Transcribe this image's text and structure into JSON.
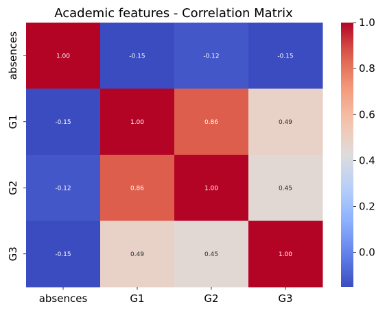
{
  "chart_data": {
    "type": "heatmap",
    "title": "Academic features - Correlation Matrix",
    "x_labels": [
      "absences",
      "G1",
      "G2",
      "G3"
    ],
    "y_labels": [
      "absences",
      "G1",
      "G2",
      "G3"
    ],
    "matrix": [
      [
        1.0,
        -0.15,
        -0.12,
        -0.15
      ],
      [
        -0.15,
        1.0,
        0.86,
        0.49
      ],
      [
        -0.12,
        0.86,
        1.0,
        0.45
      ],
      [
        -0.15,
        0.49,
        0.45,
        1.0
      ]
    ],
    "annotations": [
      [
        "1.00",
        "-0.15",
        "-0.12",
        "-0.15"
      ],
      [
        "-0.15",
        "1.00",
        "0.86",
        "0.49"
      ],
      [
        "-0.12",
        "0.86",
        "1.00",
        "0.45"
      ],
      [
        "-0.15",
        "0.49",
        "0.45",
        "1.00"
      ]
    ],
    "colormap": "coolwarm",
    "vmin": -0.15,
    "vmax": 1.0,
    "colorbar": {
      "ticks": [
        0.0,
        0.2,
        0.4,
        0.6,
        0.8,
        1.0
      ],
      "tick_labels": [
        "0.0",
        "0.2",
        "0.4",
        "0.6",
        "0.8",
        "1.0"
      ]
    }
  }
}
